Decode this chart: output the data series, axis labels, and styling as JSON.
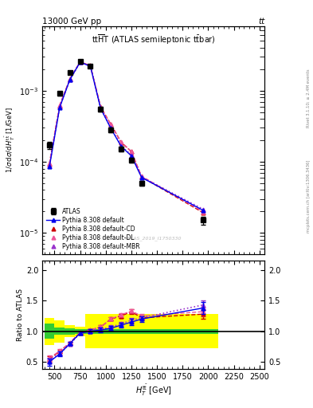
{
  "title_top_left": "13000 GeV pp",
  "title_top_right": "tt",
  "watermark": "ATLAS_2019_I1750330",
  "right_label_top": "Rivet 3.1.10; ≥ 2.4M events",
  "right_label_bottom": "mcplots.cern.ch [arXiv:1306.3436]",
  "xlabel": "$H_T^{\\mathrm{t\\bar{t}}}$ [GeV]",
  "ylabel_main": "$1/\\sigma\\,\\mathrm{d}\\sigma / \\mathrm{d}\\,H_T^{\\mathrm{t\\bar{t}}}$ [1/GeV]",
  "ylabel_ratio": "Ratio to ATLAS",
  "x_data": [
    450,
    550,
    650,
    750,
    850,
    950,
    1050,
    1150,
    1250,
    1350,
    1950
  ],
  "atlas_y": [
    0.00017,
    0.00092,
    0.0018,
    0.0026,
    0.0022,
    0.00055,
    0.00028,
    0.00015,
    0.000105,
    5e-05,
    1.5e-05
  ],
  "atlas_yerr": [
    2e-05,
    6e-05,
    0.0001,
    0.00015,
    0.00012,
    4e-05,
    2e-05,
    1.2e-05,
    8e-06,
    4e-06,
    2e-06
  ],
  "ratio_default": [
    0.5,
    0.63,
    0.8,
    0.97,
    1.0,
    1.02,
    1.05,
    1.1,
    1.15,
    1.2,
    1.38
  ],
  "ratio_cd": [
    0.55,
    0.67,
    0.81,
    0.98,
    1.02,
    1.07,
    1.2,
    1.25,
    1.32,
    1.22,
    1.28
  ],
  "ratio_dl": [
    0.56,
    0.68,
    0.81,
    0.98,
    1.02,
    1.07,
    1.2,
    1.27,
    1.33,
    1.25,
    1.32
  ],
  "ratio_mbr": [
    0.52,
    0.64,
    0.79,
    0.97,
    1.01,
    1.03,
    1.07,
    1.12,
    1.18,
    1.22,
    1.43
  ],
  "ratio_err": [
    0.06,
    0.04,
    0.03,
    0.03,
    0.03,
    0.04,
    0.04,
    0.04,
    0.05,
    0.05,
    0.1
  ],
  "band_x_edges": [
    400,
    500,
    600,
    700,
    800,
    1000,
    1300,
    2100
  ],
  "band_green_half": [
    0.12,
    0.06,
    0.05,
    0.04,
    0.04,
    0.04,
    0.04
  ],
  "band_yellow_half": [
    0.22,
    0.18,
    0.1,
    0.08,
    0.28,
    0.28,
    0.28
  ],
  "color_atlas": "#000000",
  "color_default": "#0000ee",
  "color_cd": "#cc0000",
  "color_dl": "#ee5599",
  "color_mbr": "#9933cc",
  "color_green": "#33cc33",
  "color_yellow": "#ffff00",
  "xlim": [
    380,
    2550
  ],
  "ylim_main": [
    5e-06,
    0.008
  ],
  "ylim_ratio": [
    0.38,
    2.15
  ],
  "ratio_yticks": [
    0.5,
    1.0,
    1.5,
    2.0
  ]
}
